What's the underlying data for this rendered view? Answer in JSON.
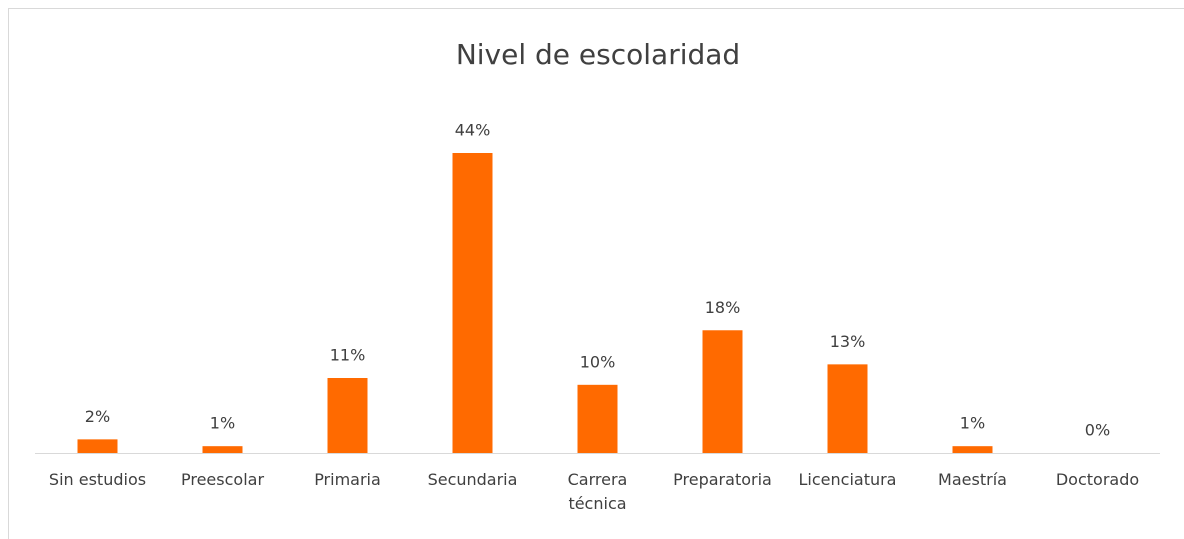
{
  "chart_data": {
    "type": "bar",
    "title": "Nivel de escolaridad",
    "categories": [
      "Sin estudios",
      "Preescolar",
      "Primaria",
      "Secundaria",
      "Carrera técnica",
      "Preparatoria",
      "Licenciatura",
      "Maestría",
      "Doctorado"
    ],
    "values": [
      2,
      1,
      11,
      44,
      10,
      18,
      13,
      1,
      0
    ],
    "value_labels": [
      "2%",
      "1%",
      "11%",
      "44%",
      "10%",
      "18%",
      "13%",
      "1%",
      "0%"
    ],
    "color": "#ff6a00"
  }
}
